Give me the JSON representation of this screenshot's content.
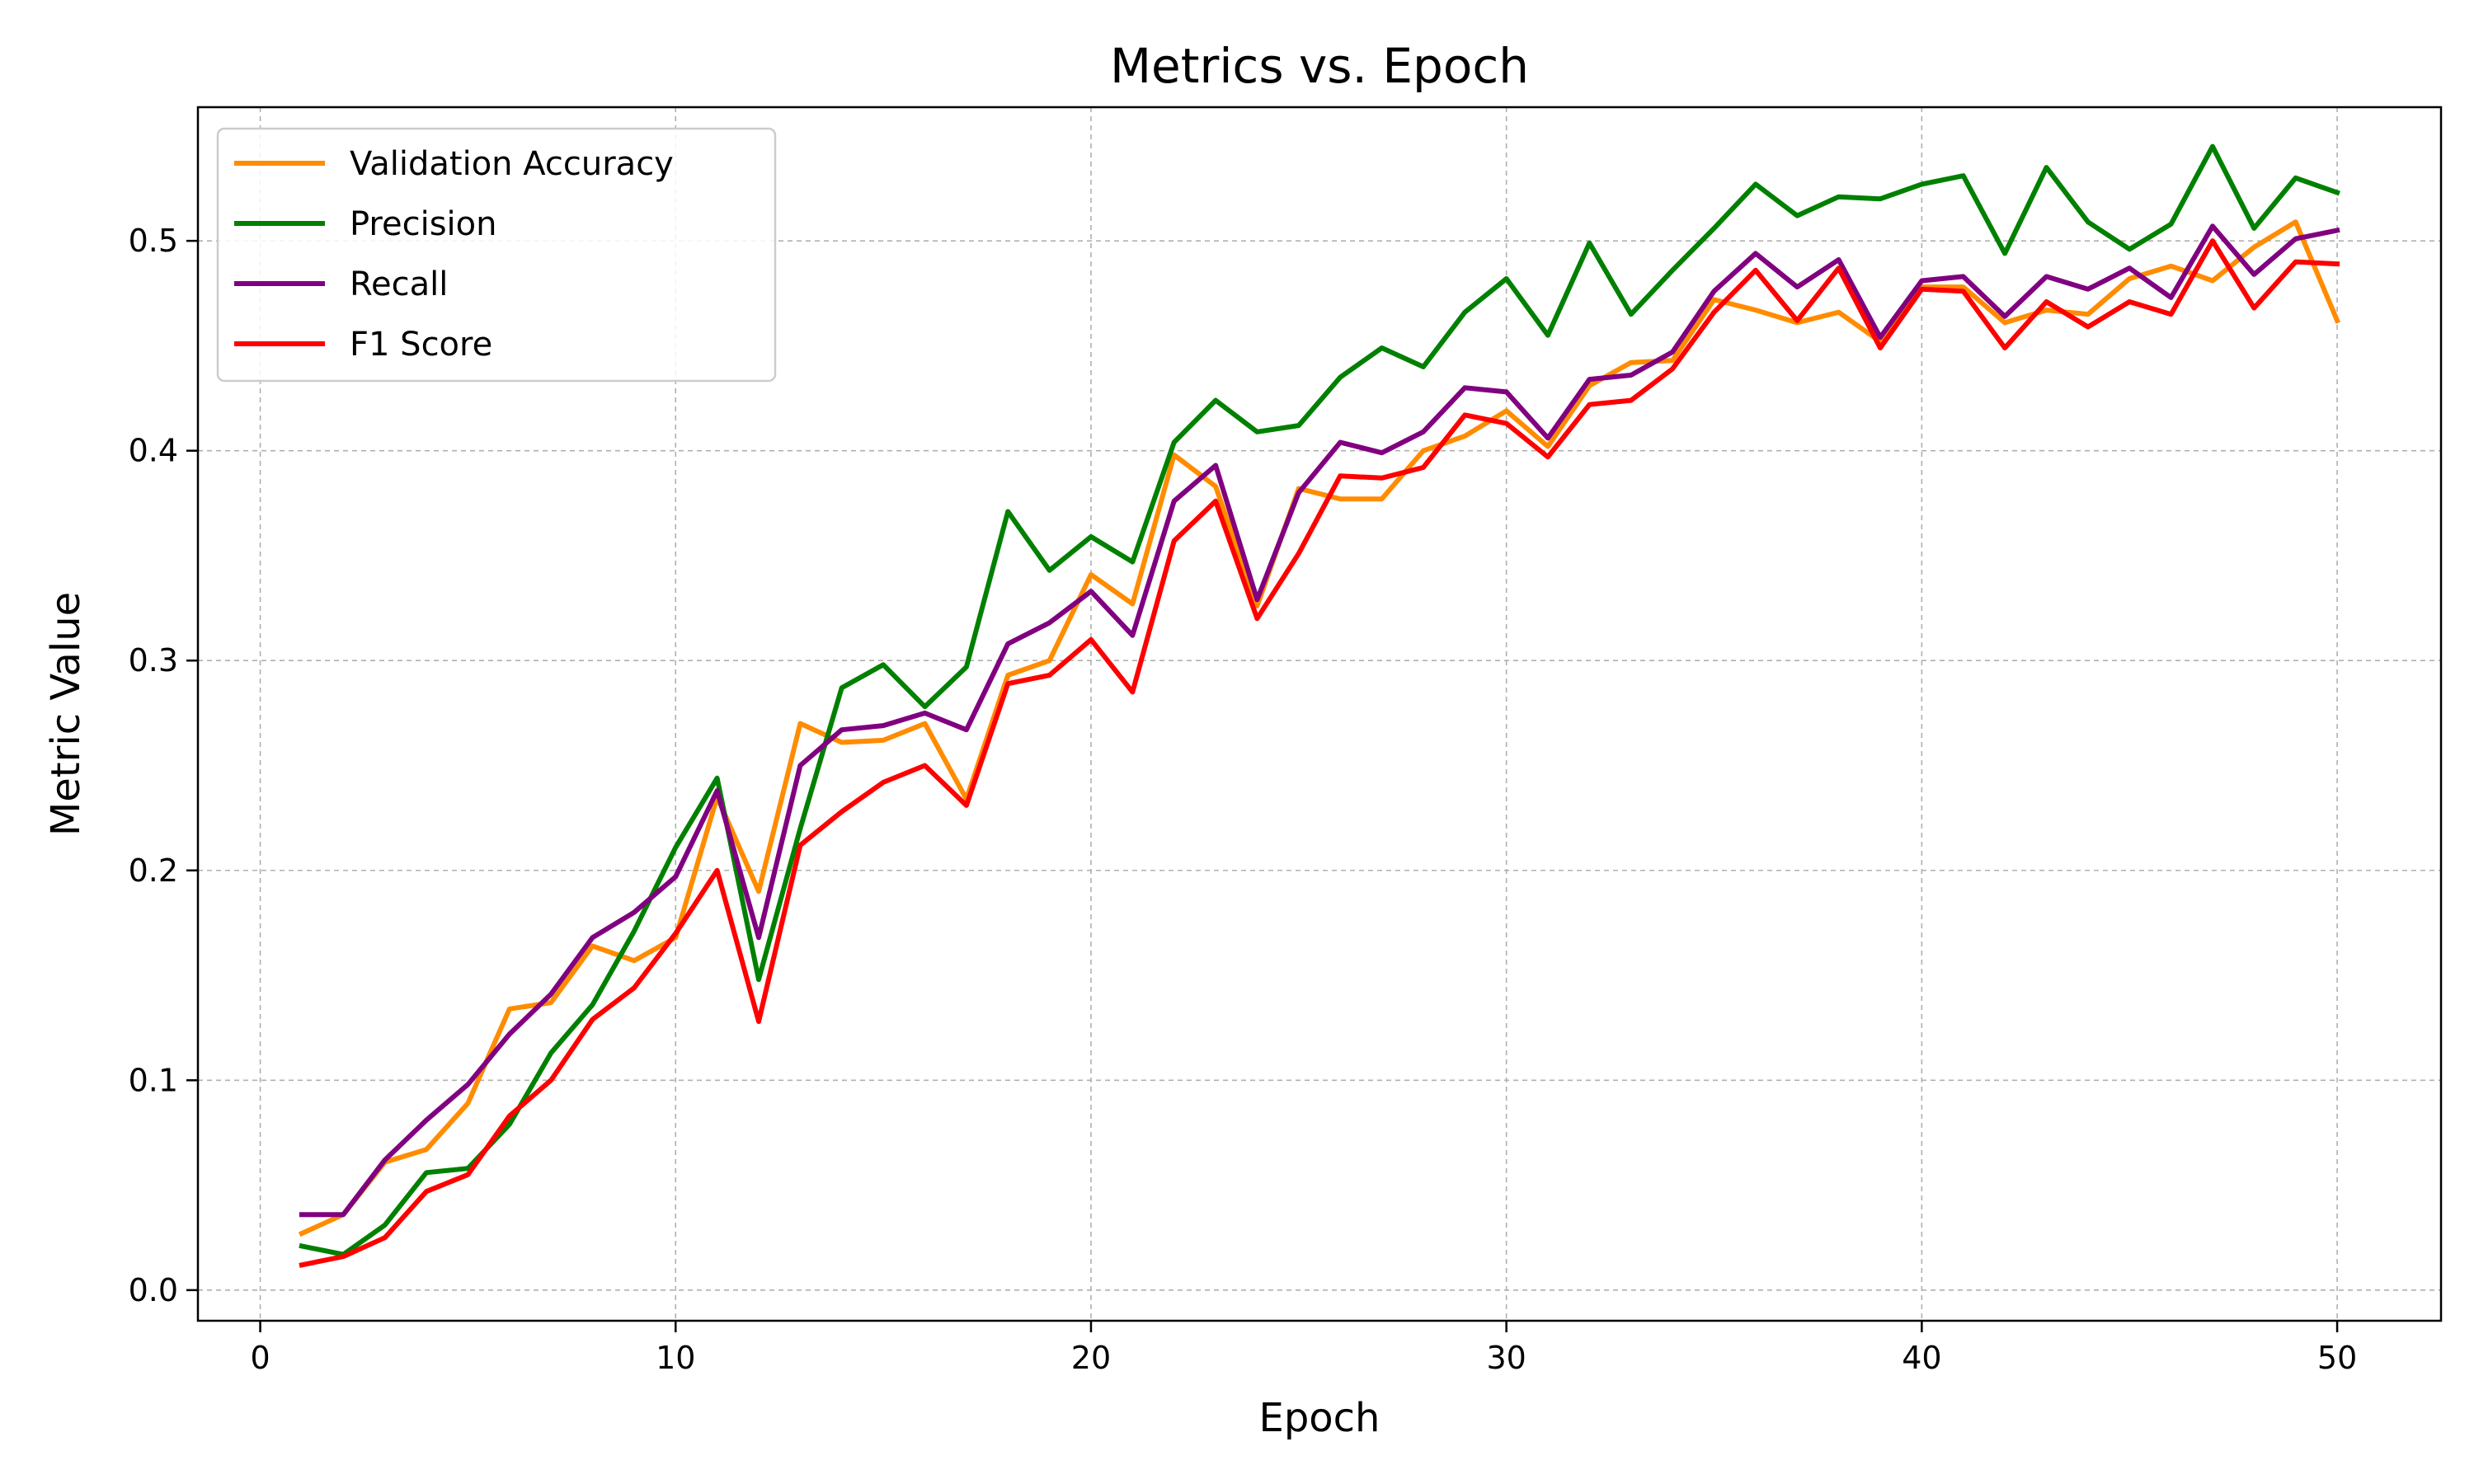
{
  "chart_data": {
    "type": "line",
    "title": "Metrics vs. Epoch",
    "xlabel": "Epoch",
    "ylabel": "Metric Value",
    "xlim": [
      -1.5,
      52.5
    ],
    "ylim": [
      -0.0146,
      0.5637
    ],
    "xticks": [
      0,
      10,
      20,
      30,
      40,
      50
    ],
    "yticks": [
      0.0,
      0.1,
      0.2,
      0.3,
      0.4,
      0.5
    ],
    "ytick_labels": [
      "0.0",
      "0.1",
      "0.2",
      "0.3",
      "0.4",
      "0.5"
    ],
    "grid": true,
    "legend": "top-left",
    "x": [
      1,
      2,
      3,
      4,
      5,
      6,
      7,
      8,
      9,
      10,
      11,
      12,
      13,
      14,
      15,
      16,
      17,
      18,
      19,
      20,
      21,
      22,
      23,
      24,
      25,
      26,
      27,
      28,
      29,
      30,
      31,
      32,
      33,
      34,
      35,
      36,
      37,
      38,
      39,
      40,
      41,
      42,
      43,
      44,
      45,
      46,
      47,
      48,
      49,
      50
    ],
    "series": [
      {
        "name": "Validation Accuracy",
        "color": "#ff8c00",
        "values": [
          0.027,
          0.036,
          0.061,
          0.067,
          0.089,
          0.134,
          0.137,
          0.164,
          0.157,
          0.168,
          0.235,
          0.19,
          0.27,
          0.261,
          0.262,
          0.27,
          0.234,
          0.293,
          0.3,
          0.341,
          0.327,
          0.398,
          0.383,
          0.326,
          0.382,
          0.377,
          0.377,
          0.4,
          0.407,
          0.419,
          0.402,
          0.431,
          0.442,
          0.443,
          0.472,
          0.467,
          0.461,
          0.466,
          0.452,
          0.478,
          0.478,
          0.461,
          0.467,
          0.465,
          0.482,
          0.488,
          0.481,
          0.497,
          0.509,
          0.462
        ]
      },
      {
        "name": "Precision",
        "color": "#008000",
        "values": [
          0.021,
          0.017,
          0.031,
          0.056,
          0.058,
          0.079,
          0.113,
          0.136,
          0.171,
          0.211,
          0.244,
          0.148,
          0.22,
          0.287,
          0.298,
          0.278,
          0.297,
          0.371,
          0.343,
          0.359,
          0.347,
          0.404,
          0.424,
          0.409,
          0.412,
          0.435,
          0.449,
          0.44,
          0.466,
          0.482,
          0.455,
          0.499,
          0.465,
          0.486,
          0.506,
          0.527,
          0.512,
          0.521,
          0.52,
          0.527,
          0.531,
          0.494,
          0.535,
          0.509,
          0.496,
          0.508,
          0.545,
          0.506,
          0.53,
          0.523
        ]
      },
      {
        "name": "Recall",
        "color": "#800080",
        "values": [
          0.036,
          0.036,
          0.062,
          0.081,
          0.098,
          0.122,
          0.141,
          0.168,
          0.18,
          0.197,
          0.238,
          0.168,
          0.25,
          0.267,
          0.269,
          0.275,
          0.267,
          0.308,
          0.318,
          0.333,
          0.312,
          0.376,
          0.393,
          0.329,
          0.38,
          0.404,
          0.399,
          0.409,
          0.43,
          0.428,
          0.406,
          0.434,
          0.436,
          0.447,
          0.476,
          0.494,
          0.478,
          0.491,
          0.454,
          0.481,
          0.483,
          0.464,
          0.483,
          0.477,
          0.487,
          0.473,
          0.507,
          0.484,
          0.501,
          0.505
        ]
      },
      {
        "name": "F1 Score",
        "color": "#ff0000",
        "values": [
          0.012,
          0.016,
          0.025,
          0.047,
          0.055,
          0.083,
          0.1,
          0.129,
          0.144,
          0.17,
          0.2,
          0.128,
          0.212,
          0.228,
          0.242,
          0.25,
          0.231,
          0.289,
          0.293,
          0.31,
          0.285,
          0.357,
          0.376,
          0.32,
          0.351,
          0.388,
          0.387,
          0.392,
          0.417,
          0.413,
          0.397,
          0.422,
          0.424,
          0.439,
          0.466,
          0.486,
          0.462,
          0.487,
          0.449,
          0.477,
          0.476,
          0.449,
          0.471,
          0.459,
          0.471,
          0.465,
          0.5,
          0.468,
          0.49,
          0.489
        ]
      }
    ]
  }
}
